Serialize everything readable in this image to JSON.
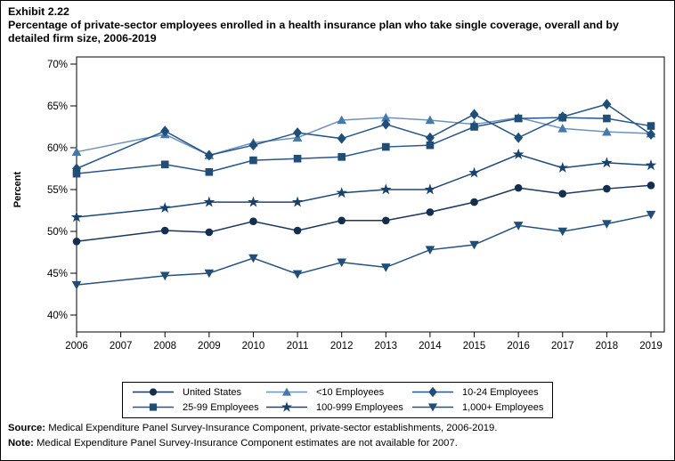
{
  "title": {
    "exhibit": "Exhibit 2.22",
    "text": "Percentage of private-sector employees enrolled in a health insurance plan who take single coverage, overall and by detailed firm size, 2006-2019"
  },
  "chart_data": {
    "type": "line",
    "title": "Percentage of private-sector employees enrolled in a health insurance plan who take single coverage, overall and by detailed firm size, 2006-2019",
    "xlabel": "",
    "ylabel": "Percent",
    "ylim": [
      40,
      70
    ],
    "y_ticks": [
      70,
      65,
      60,
      55,
      50,
      45,
      40
    ],
    "y_tick_suffix": "%",
    "x_ticks": [
      2006,
      2007,
      2008,
      2009,
      2010,
      2011,
      2012,
      2013,
      2014,
      2015,
      2016,
      2017,
      2018,
      2019
    ],
    "x": [
      2006,
      2008,
      2009,
      2010,
      2011,
      2012,
      2013,
      2014,
      2015,
      2016,
      2017,
      2018,
      2019
    ],
    "missing_years": [
      2007
    ],
    "grid": false,
    "legend_position": "bottom",
    "axis_color": "#000000",
    "series": [
      {
        "name": "United States",
        "marker": "circle",
        "color": "#17375e",
        "marker_color": "#132e4f",
        "values": [
          48.8,
          50.1,
          49.9,
          51.2,
          50.1,
          51.3,
          51.3,
          52.3,
          53.5,
          55.2,
          54.5,
          55.1,
          55.5
        ]
      },
      {
        "name": "<10 Employees",
        "marker": "triangle",
        "color": "#6c92be",
        "marker_color": "#4579ac",
        "values": [
          59.5,
          61.6,
          59.1,
          60.6,
          61.2,
          63.3,
          63.6,
          63.3,
          62.8,
          63.6,
          62.3,
          61.9,
          61.7
        ]
      },
      {
        "name": "10-24 Employees",
        "marker": "diamond",
        "color": "#24568a",
        "marker_color": "#1f4e79",
        "values": [
          57.5,
          62.0,
          59.1,
          60.3,
          61.8,
          61.1,
          62.8,
          61.2,
          64.0,
          61.2,
          63.7,
          65.2,
          61.6
        ]
      },
      {
        "name": "25-99 Employees",
        "marker": "square",
        "color": "#26568c",
        "marker_color": "#1f4e79",
        "values": [
          56.9,
          58.0,
          57.1,
          58.5,
          58.7,
          58.9,
          60.1,
          60.3,
          62.5,
          63.5,
          63.6,
          63.5,
          62.6
        ]
      },
      {
        "name": "100-999 Employees",
        "marker": "star",
        "color": "#1b4878",
        "marker_color": "#17416e",
        "values": [
          51.7,
          52.8,
          53.5,
          53.5,
          53.5,
          54.6,
          55.0,
          55.0,
          57.0,
          59.2,
          57.6,
          58.2,
          57.9
        ]
      },
      {
        "name": "1,000+ Employees",
        "marker": "triangle-down",
        "color": "#235280",
        "marker_color": "#1f4e79",
        "values": [
          43.6,
          44.7,
          45.0,
          46.8,
          44.9,
          46.3,
          45.7,
          47.8,
          48.4,
          50.7,
          50.0,
          50.9,
          52.0
        ]
      }
    ]
  },
  "footer": {
    "source_label": "Source:",
    "source_text": " Medical Expenditure Panel Survey-Insurance Component, private-sector establishments, 2006-2019.",
    "note_label": "Note:",
    "note_text": " Medical Expenditure Panel Survey-Insurance Component estimates are not available for 2007."
  }
}
